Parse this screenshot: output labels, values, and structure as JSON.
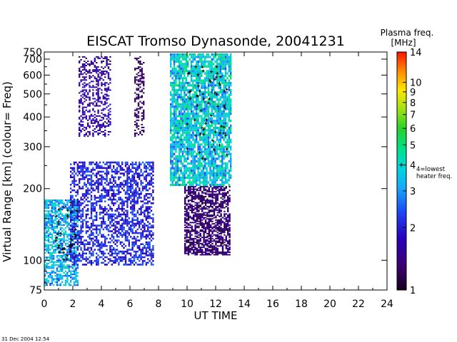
{
  "chart_data": {
    "type": "heatmap",
    "title": "EISCAT Tromso Dynasonde,  20041231",
    "xlabel": "UT TIME",
    "ylabel": "Virtual Range  [km]    (colour= Freq)",
    "x_ticks": [
      "0",
      "2",
      "4",
      "6",
      "8",
      "10",
      "12",
      "14",
      "16",
      "18",
      "20",
      "22",
      "24"
    ],
    "xlim": [
      0,
      24
    ],
    "y_scale": "log",
    "ylim": [
      75,
      750
    ],
    "y_ticks": [
      {
        "value": 75,
        "label": "75"
      },
      {
        "value": 100,
        "label": "100"
      },
      {
        "value": 200,
        "label": "200"
      },
      {
        "value": 300,
        "label": "300"
      },
      {
        "value": 400,
        "label": "400"
      },
      {
        "value": 500,
        "label": "500"
      },
      {
        "value": 600,
        "label": "600"
      },
      {
        "value": 700,
        "label": "700"
      },
      {
        "value": 750,
        "label": "750"
      }
    ],
    "colorbar": {
      "title_line1": "Plasma freq.",
      "title_line2": "[MHz]",
      "scale": "log",
      "range": [
        1,
        14
      ],
      "ticks": [
        {
          "value": 14,
          "label": "14"
        },
        {
          "value": 10,
          "label": "10"
        },
        {
          "value": 9,
          "label": "9"
        },
        {
          "value": 8,
          "label": "8"
        },
        {
          "value": 7,
          "label": "7"
        },
        {
          "value": 6,
          "label": "6"
        },
        {
          "value": 5,
          "label": "5"
        },
        {
          "value": 4,
          "label": "4"
        },
        {
          "value": 3,
          "label": "3"
        },
        {
          "value": 2,
          "label": "2"
        },
        {
          "value": 1,
          "label": "1"
        }
      ],
      "note_line1": "4=lowest",
      "note_line2": "heater freq.",
      "note_value": 4
    },
    "echo_regions": [
      {
        "t0": 0.0,
        "t1": 2.4,
        "h0": 78,
        "h1": 180,
        "f0": 2.2,
        "f1": 4.6,
        "density": 0.65
      },
      {
        "t0": 1.8,
        "t1": 7.6,
        "h0": 95,
        "h1": 260,
        "f0": 1.6,
        "f1": 2.6,
        "density": 0.55
      },
      {
        "t0": 2.4,
        "t1": 4.6,
        "h0": 330,
        "h1": 720,
        "f0": 1.3,
        "f1": 2.0,
        "density": 0.45
      },
      {
        "t0": 6.3,
        "t1": 7.0,
        "h0": 330,
        "h1": 720,
        "f0": 1.1,
        "f1": 1.4,
        "density": 0.45
      },
      {
        "t0": 8.8,
        "t1": 13.0,
        "h0": 205,
        "h1": 740,
        "f0": 2.4,
        "f1": 5.2,
        "density": 0.8
      },
      {
        "t0": 9.8,
        "t1": 13.0,
        "h0": 105,
        "h1": 205,
        "f0": 1.05,
        "f1": 1.6,
        "density": 0.65
      }
    ],
    "marker_clusters": [
      {
        "t0": 0.8,
        "t1": 2.4,
        "h0": 100,
        "h1": 175
      },
      {
        "t0": 10.0,
        "t1": 12.8,
        "h0": 260,
        "h1": 650
      }
    ],
    "footer_timestamp": "31 Dec 2004 12:54"
  }
}
